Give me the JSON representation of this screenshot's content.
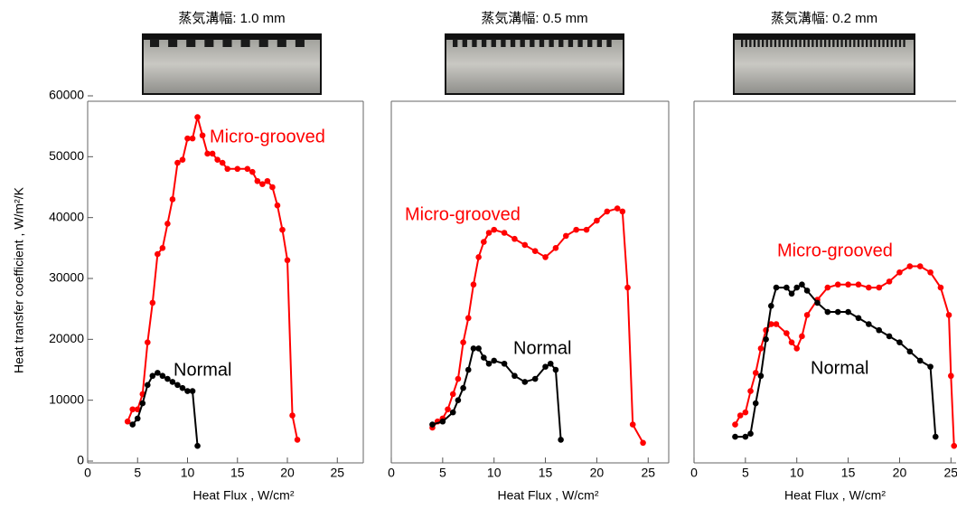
{
  "chart_data": [
    {
      "type": "line",
      "title": "蒸気溝幅: 1.0 mm",
      "xlabel": "Heat Flux , W/cm²",
      "ylabel": "Heat transfer coefficient , W/m²/K",
      "xlim": [
        0,
        27.6
      ],
      "xticks": [
        0,
        5,
        10,
        15,
        20,
        25
      ],
      "ylim": [
        0,
        60000
      ],
      "yticks": [
        0,
        10000,
        20000,
        30000,
        40000,
        50000,
        60000
      ],
      "series": [
        {
          "name": "Micro-grooved",
          "color": "#ff0000",
          "x": [
            4,
            4.5,
            5,
            5.5,
            6,
            6.5,
            7,
            7.5,
            8,
            8.5,
            9,
            9.5,
            10,
            10.5,
            11,
            11.5,
            12,
            12.5,
            13,
            13.5,
            14,
            15,
            16,
            16.5,
            17,
            17.5,
            18,
            18.5,
            19,
            19.5,
            20,
            20.5,
            21
          ],
          "values": [
            6500,
            8500,
            8500,
            11000,
            19500,
            26000,
            34000,
            35000,
            39000,
            43000,
            49000,
            49500,
            53000,
            53000,
            56500,
            53500,
            50500,
            50500,
            49500,
            49000,
            48000,
            48000,
            48000,
            47500,
            46000,
            45500,
            46000,
            45000,
            42000,
            38000,
            33000,
            7500,
            3500
          ]
        },
        {
          "name": "Normal",
          "color": "#000000",
          "x": [
            4.5,
            5,
            5.5,
            6,
            6.5,
            7,
            7.5,
            8,
            8.5,
            9,
            9.5,
            10,
            10.5,
            11
          ],
          "values": [
            6000,
            7000,
            9500,
            12500,
            14000,
            14500,
            14000,
            13500,
            13000,
            12500,
            12000,
            11500,
            11500,
            2500
          ]
        }
      ]
    },
    {
      "type": "line",
      "title": "蒸気溝幅: 0.5 mm",
      "xlabel": "Heat Flux , W/cm²",
      "xlim": [
        0,
        27
      ],
      "xticks": [
        0,
        5,
        10,
        15,
        20,
        25
      ],
      "ylim": [
        0,
        60000
      ],
      "series": [
        {
          "name": "Micro-grooved",
          "color": "#ff0000",
          "x": [
            4,
            4.5,
            5,
            5.5,
            6,
            6.5,
            7,
            7.5,
            8,
            8.5,
            9,
            9.5,
            10,
            11,
            12,
            13,
            14,
            15,
            16,
            17,
            18,
            19,
            20,
            21,
            22,
            22.5,
            23,
            23.5,
            24.5
          ],
          "values": [
            5500,
            6500,
            7000,
            8500,
            11000,
            13500,
            19500,
            23500,
            29000,
            33500,
            36000,
            37500,
            38000,
            37500,
            36500,
            35500,
            34500,
            33500,
            35000,
            37000,
            38000,
            38000,
            39500,
            41000,
            41500,
            41000,
            28500,
            6000,
            3000
          ]
        },
        {
          "name": "Normal",
          "color": "#000000",
          "x": [
            4,
            5,
            6,
            6.5,
            7,
            7.5,
            8,
            8.5,
            9,
            9.5,
            10,
            11,
            12,
            13,
            14,
            15,
            15.5,
            16,
            16.5
          ],
          "values": [
            6000,
            6500,
            8000,
            10000,
            12000,
            15000,
            18500,
            18500,
            17000,
            16000,
            16500,
            16000,
            14000,
            13000,
            13500,
            15500,
            16000,
            15000,
            3500
          ]
        }
      ]
    },
    {
      "type": "line",
      "title": "蒸気溝幅: 0.2 mm",
      "xlabel": "Heat Flux , W/cm²",
      "xlim": [
        0,
        25.5
      ],
      "xticks": [
        0,
        5,
        10,
        15,
        20,
        25
      ],
      "ylim": [
        0,
        60000
      ],
      "series": [
        {
          "name": "Micro-grooved",
          "color": "#ff0000",
          "x": [
            4,
            4.5,
            5,
            5.5,
            6,
            6.5,
            7,
            7.5,
            8,
            9,
            9.5,
            10,
            10.5,
            11,
            12,
            13,
            14,
            15,
            16,
            17,
            18,
            19,
            20,
            21,
            22,
            23,
            24,
            24.8,
            25,
            25.3
          ],
          "values": [
            6000,
            7500,
            8000,
            11500,
            14500,
            18500,
            21500,
            22500,
            22500,
            21000,
            19500,
            18500,
            20500,
            24000,
            26500,
            28500,
            29000,
            29000,
            29000,
            28500,
            28500,
            29500,
            31000,
            32000,
            32000,
            31000,
            28500,
            24000,
            14000,
            2500
          ]
        },
        {
          "name": "Normal",
          "color": "#000000",
          "x": [
            4,
            5,
            5.5,
            6,
            6.5,
            7,
            7.5,
            8,
            9,
            9.5,
            10,
            10.5,
            11,
            12,
            13,
            14,
            15,
            16,
            17,
            18,
            19,
            20,
            21,
            22,
            23,
            23.5
          ],
          "values": [
            4000,
            4000,
            4500,
            9500,
            14000,
            20000,
            25500,
            28500,
            28500,
            27500,
            28500,
            29000,
            28000,
            26000,
            24500,
            24500,
            24500,
            23500,
            22500,
            21500,
            20500,
            19500,
            18000,
            16500,
            15500,
            4000
          ]
        }
      ]
    }
  ]
}
